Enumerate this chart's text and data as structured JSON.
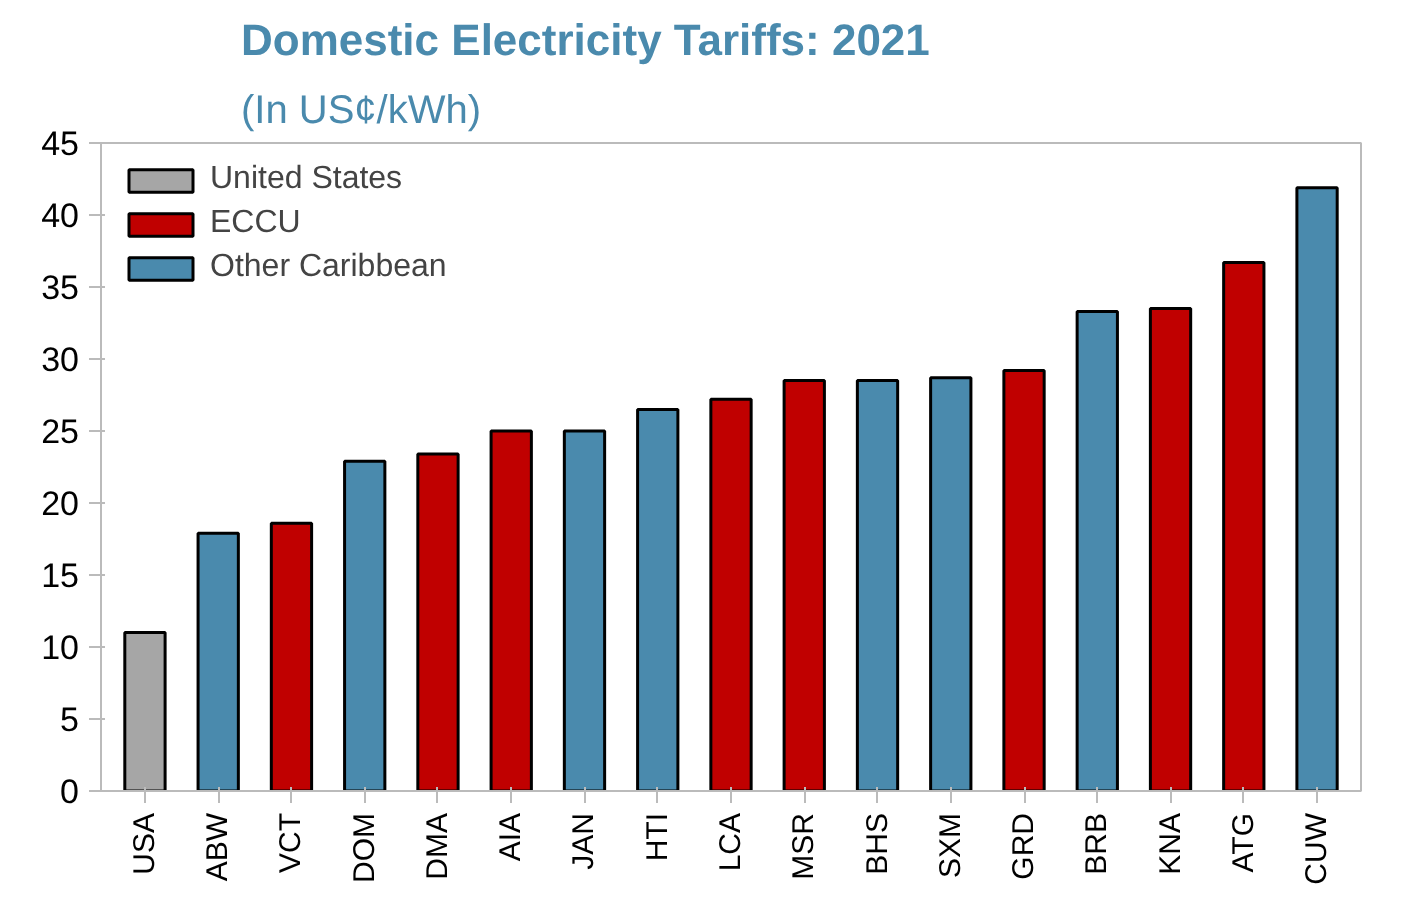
{
  "chart_data": {
    "type": "bar",
    "title": "Domestic Electricity Tariffs: 2021",
    "subtitle": "(In US¢/kWh)",
    "categories": [
      "USA",
      "ABW",
      "VCT",
      "DOM",
      "DMA",
      "AIA",
      "JAN",
      "HTI",
      "LCA",
      "MSR",
      "BHS",
      "SXM",
      "GRD",
      "BRB",
      "KNA",
      "ATG",
      "CUW"
    ],
    "series": [
      {
        "name": "United States",
        "color": "#a6a6a6",
        "values": [
          11.0,
          null,
          null,
          null,
          null,
          null,
          null,
          null,
          null,
          null,
          null,
          null,
          null,
          null,
          null,
          null,
          null
        ]
      },
      {
        "name": "ECCU",
        "color": "#c00000",
        "values": [
          null,
          null,
          18.6,
          null,
          23.4,
          25.0,
          null,
          null,
          27.2,
          28.5,
          null,
          null,
          29.2,
          null,
          33.5,
          36.7,
          null
        ]
      },
      {
        "name": "Other Caribbean",
        "color": "#4a8aad",
        "values": [
          null,
          17.9,
          null,
          22.9,
          null,
          null,
          25.0,
          26.5,
          null,
          null,
          28.5,
          28.7,
          null,
          33.3,
          null,
          null,
          41.9
        ]
      }
    ],
    "ylim": [
      0,
      45
    ],
    "yticks": [
      0,
      5,
      10,
      15,
      20,
      25,
      30,
      35,
      40,
      45
    ],
    "grid": false,
    "legend": "top left"
  }
}
